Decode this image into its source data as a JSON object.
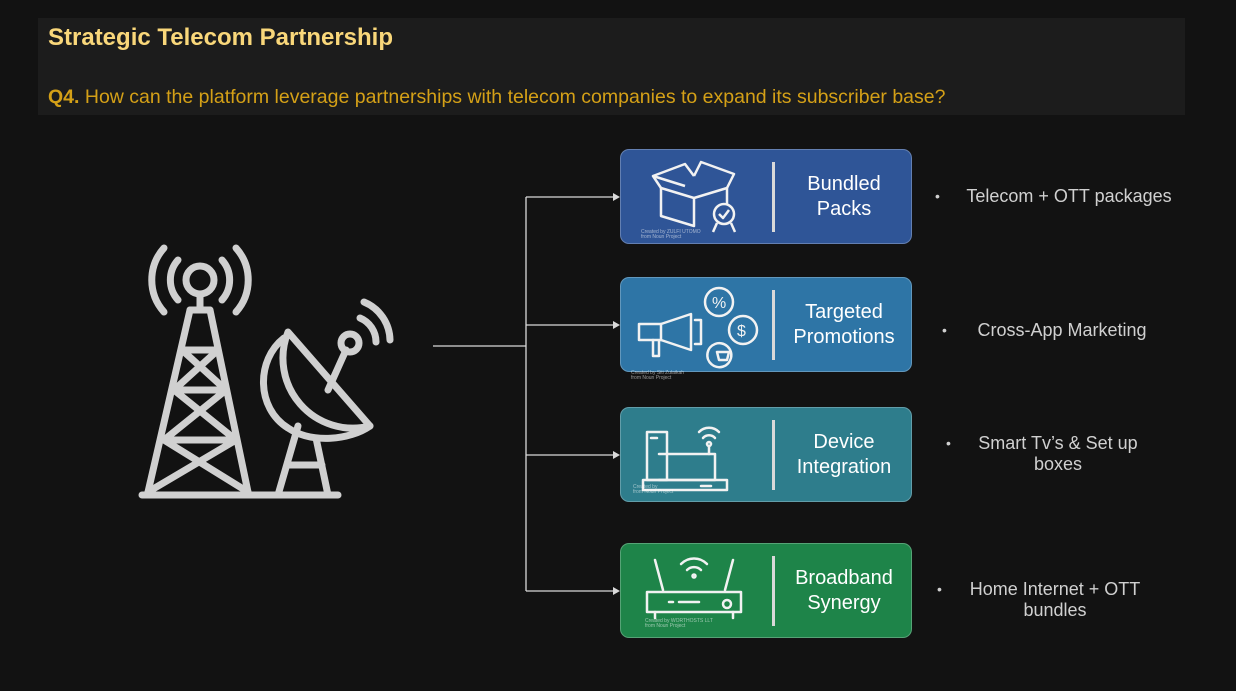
{
  "header": {
    "title": "Strategic Telecom Partnership",
    "question_prefix": "Q4.",
    "question_text": "How can the platform leverage partnerships with telecom companies to expand its subscriber base?"
  },
  "cards": [
    {
      "label_line1": "Bundled",
      "label_line2": "Packs",
      "color": "#2f5597",
      "credit": "Created by ZULFI UTOMO\nfrom Noun Project",
      "bullet": "Telecom + OTT packages"
    },
    {
      "label_line1": "Targeted",
      "label_line2": "Promotions",
      "color": "#2e75a6",
      "credit": "Created by Siti Zulaikah\nfrom Noun Project",
      "bullet": "Cross-App Marketing"
    },
    {
      "label_line1": "Device",
      "label_line2": "Integration",
      "color": "#2e7d8c",
      "credit": "Created by \nfrom Noun Project",
      "bullet": "Smart Tv’s & Set up boxes"
    },
    {
      "label_line1": "Broadband",
      "label_line2": "Synergy",
      "color": "#1e8449",
      "credit": "Created by WORTHOSTS LLT\nfrom Noun Project",
      "bullet": "Home Internet + OTT bundles"
    }
  ],
  "colors": {
    "title": "#f9d77a",
    "question": "#d4a017",
    "background": "#121212"
  }
}
